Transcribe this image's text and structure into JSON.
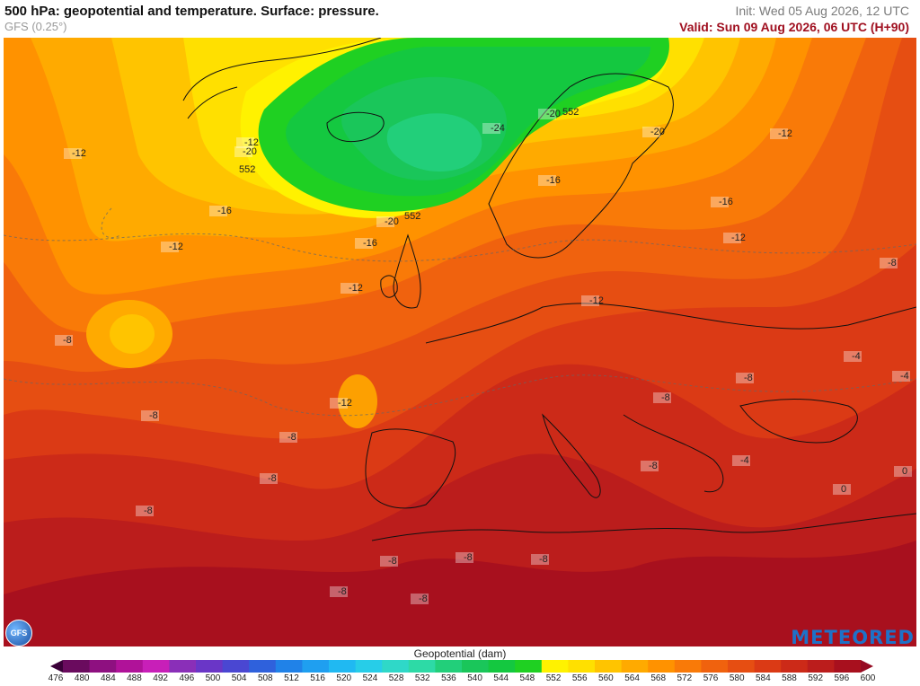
{
  "header": {
    "title": "500 hPa: geopotential and temperature. Surface: pressure.",
    "model": "GFS (0.25°)",
    "init": "Init: Wed 05 Aug 2026, 12 UTC",
    "valid": "Valid: Sun 09 Aug 2026, 06 UTC (H+90)"
  },
  "legend": {
    "title": "Geopotential (dam)",
    "levels": [
      "476",
      "480",
      "484",
      "488",
      "492",
      "496",
      "500",
      "504",
      "508",
      "512",
      "516",
      "520",
      "524",
      "528",
      "532",
      "536",
      "540",
      "544",
      "548",
      "552",
      "556",
      "560",
      "564",
      "568",
      "572",
      "576",
      "580",
      "584",
      "588",
      "592",
      "596",
      "600"
    ],
    "colors": [
      "#3a0038",
      "#6a0b5e",
      "#8e1080",
      "#b01299",
      "#c81fb8",
      "#8a2fb8",
      "#6a36c7",
      "#4a47d2",
      "#2f61dc",
      "#2082e8",
      "#1f9ff0",
      "#20b9f2",
      "#27cde8",
      "#2fd8c8",
      "#2ddaa6",
      "#22cf7a",
      "#1ac65a",
      "#14c840",
      "#1fd022",
      "#fff200",
      "#ffe000",
      "#ffc400",
      "#ffaa00",
      "#ff9200",
      "#f97a08",
      "#f0620e",
      "#e64e12",
      "#db3a15",
      "#cc2a18",
      "#bb1d1c",
      "#a8101e",
      "#960a22"
    ]
  },
  "temperature_labels": [
    "-24",
    "-20",
    "-20",
    "-20",
    "-20",
    "-16",
    "-16",
    "-16",
    "-16",
    "-12",
    "-12",
    "-12",
    "-12",
    "-12",
    "-12",
    "-12",
    "-12",
    "-8",
    "-8",
    "-8",
    "-8",
    "-8",
    "-8",
    "-8",
    "-8",
    "-8",
    "-8",
    "-8",
    "-8",
    "-8",
    "-8",
    "-4",
    "-4",
    "-4",
    "0",
    "0"
  ],
  "contour_labels": [
    "552",
    "552",
    "552"
  ],
  "branding": {
    "model_badge": "GFS",
    "provider": "METEORED"
  }
}
